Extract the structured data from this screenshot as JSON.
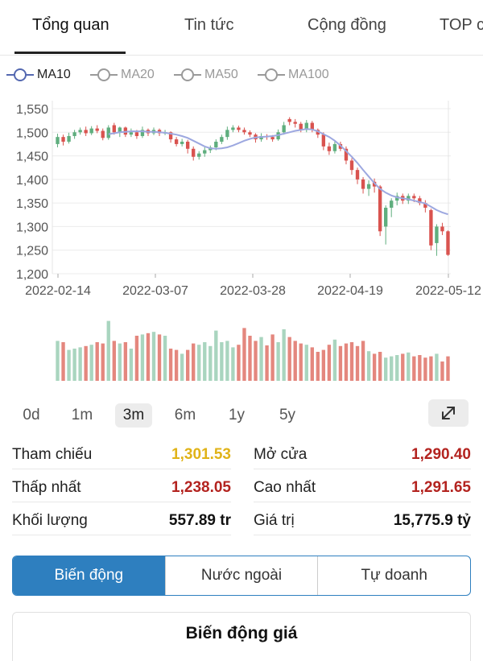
{
  "tabs": [
    {
      "label": "Tổng quan",
      "active": true
    },
    {
      "label": "Tin tức",
      "active": false
    },
    {
      "label": "Cộng đồng",
      "active": false
    },
    {
      "label": "TOP c",
      "active": false
    }
  ],
  "ma_legend": [
    {
      "label": "MA10",
      "color": "#5468b0",
      "active": true
    },
    {
      "label": "MA20",
      "color": "#9a9a9a",
      "active": false
    },
    {
      "label": "MA50",
      "color": "#9a9a9a",
      "active": false
    },
    {
      "label": "MA100",
      "color": "#9a9a9a",
      "active": false
    }
  ],
  "chart_data": {
    "type": "candlestick",
    "y_ticks": [
      "1,550",
      "1,500",
      "1,450",
      "1,400",
      "1,350",
      "1,300",
      "1,250",
      "1,200"
    ],
    "ylim": [
      1200,
      1550
    ],
    "x_ticks": [
      "2022-02-14",
      "2022-03-07",
      "2022-03-28",
      "2022-04-19",
      "2022-05-12"
    ],
    "colors": {
      "up": "#5fae7e",
      "down": "#d9534f",
      "ma": "#9da8e0",
      "up_vol": "#a9d5bf",
      "down_vol": "#e4877e"
    },
    "candles": [
      [
        1475,
        1490,
        1497,
        1468
      ],
      [
        1490,
        1480,
        1495,
        1472
      ],
      [
        1480,
        1492,
        1499,
        1476
      ],
      [
        1492,
        1500,
        1505,
        1486
      ],
      [
        1500,
        1505,
        1510,
        1495
      ],
      [
        1505,
        1498,
        1512,
        1492
      ],
      [
        1498,
        1508,
        1513,
        1494
      ],
      [
        1508,
        1503,
        1515,
        1498
      ],
      [
        1503,
        1488,
        1508,
        1483
      ],
      [
        1488,
        1510,
        1515,
        1484
      ],
      [
        1515,
        1500,
        1520,
        1495
      ],
      [
        1500,
        1510,
        1512,
        1490
      ],
      [
        1510,
        1495,
        1512,
        1490
      ],
      [
        1495,
        1500,
        1508,
        1490
      ],
      [
        1500,
        1492,
        1505,
        1486
      ],
      [
        1492,
        1505,
        1512,
        1488
      ],
      [
        1505,
        1498,
        1508,
        1492
      ],
      [
        1498,
        1505,
        1510,
        1494
      ],
      [
        1505,
        1498,
        1508,
        1492
      ],
      [
        1498,
        1500,
        1505,
        1494
      ],
      [
        1500,
        1485,
        1502,
        1478
      ],
      [
        1485,
        1475,
        1490,
        1470
      ],
      [
        1475,
        1480,
        1486,
        1470
      ],
      [
        1480,
        1465,
        1484,
        1455
      ],
      [
        1465,
        1448,
        1470,
        1440
      ],
      [
        1448,
        1455,
        1460,
        1442
      ],
      [
        1455,
        1462,
        1468,
        1448
      ],
      [
        1462,
        1468,
        1472,
        1456
      ],
      [
        1468,
        1480,
        1485,
        1462
      ],
      [
        1480,
        1490,
        1495,
        1475
      ],
      [
        1490,
        1505,
        1512,
        1484
      ],
      [
        1505,
        1510,
        1515,
        1500
      ],
      [
        1510,
        1505,
        1514,
        1500
      ],
      [
        1505,
        1500,
        1510,
        1495
      ],
      [
        1500,
        1495,
        1504,
        1490
      ],
      [
        1495,
        1485,
        1498,
        1478
      ],
      [
        1485,
        1492,
        1498,
        1480
      ],
      [
        1492,
        1490,
        1496,
        1484
      ],
      [
        1490,
        1485,
        1494,
        1480
      ],
      [
        1485,
        1500,
        1506,
        1482
      ],
      [
        1500,
        1515,
        1522,
        1495
      ],
      [
        1528,
        1522,
        1532,
        1515
      ],
      [
        1522,
        1518,
        1528,
        1510
      ],
      [
        1518,
        1505,
        1522,
        1500
      ],
      [
        1505,
        1520,
        1526,
        1500
      ],
      [
        1520,
        1505,
        1524,
        1500
      ],
      [
        1505,
        1495,
        1508,
        1488
      ],
      [
        1495,
        1470,
        1500,
        1462
      ],
      [
        1470,
        1460,
        1478,
        1452
      ],
      [
        1460,
        1475,
        1480,
        1455
      ],
      [
        1475,
        1465,
        1480,
        1460
      ],
      [
        1465,
        1440,
        1470,
        1432
      ],
      [
        1440,
        1420,
        1445,
        1410
      ],
      [
        1420,
        1400,
        1425,
        1390
      ],
      [
        1400,
        1380,
        1405,
        1370
      ],
      [
        1380,
        1390,
        1398,
        1365
      ],
      [
        1395,
        1385,
        1402,
        1372
      ],
      [
        1385,
        1290,
        1388,
        1280
      ],
      [
        1300,
        1340,
        1345,
        1262
      ],
      [
        1340,
        1355,
        1360,
        1320
      ],
      [
        1355,
        1365,
        1372,
        1345
      ],
      [
        1365,
        1355,
        1370,
        1348
      ],
      [
        1355,
        1365,
        1370,
        1348
      ],
      [
        1365,
        1360,
        1370,
        1352
      ],
      [
        1360,
        1350,
        1365,
        1345
      ],
      [
        1350,
        1340,
        1356,
        1330
      ],
      [
        1335,
        1260,
        1338,
        1250
      ],
      [
        1265,
        1300,
        1305,
        1238
      ],
      [
        1300,
        1290,
        1308,
        1282
      ],
      [
        1290,
        1240,
        1292,
        1238
      ]
    ],
    "volumes": [
      0.62,
      0.6,
      0.48,
      0.5,
      0.52,
      0.54,
      0.56,
      0.6,
      0.58,
      0.93,
      0.62,
      0.58,
      0.6,
      0.5,
      0.7,
      0.72,
      0.74,
      0.76,
      0.72,
      0.7,
      0.5,
      0.48,
      0.42,
      0.48,
      0.58,
      0.56,
      0.6,
      0.54,
      0.78,
      0.6,
      0.62,
      0.52,
      0.56,
      0.82,
      0.7,
      0.62,
      0.68,
      0.55,
      0.72,
      0.6,
      0.8,
      0.68,
      0.62,
      0.58,
      0.56,
      0.52,
      0.45,
      0.48,
      0.56,
      0.64,
      0.54,
      0.58,
      0.6,
      0.54,
      0.62,
      0.46,
      0.42,
      0.45,
      0.36,
      0.38,
      0.4,
      0.42,
      0.44,
      0.38,
      0.4,
      0.36,
      0.38,
      0.42,
      0.3,
      0.38
    ],
    "ma10": [
      null,
      null,
      null,
      null,
      null,
      null,
      null,
      null,
      null,
      1496,
      1498,
      1500,
      1501,
      1502,
      1502,
      1502,
      1501,
      1501,
      1500,
      1499,
      1497,
      1495,
      1492,
      1488,
      1482,
      1476,
      1470,
      1466,
      1465,
      1466,
      1468,
      1472,
      1477,
      1482,
      1486,
      1489,
      1490,
      1491,
      1492,
      1494,
      1497,
      1500,
      1503,
      1505,
      1507,
      1506,
      1502,
      1496,
      1490,
      1482,
      1472,
      1460,
      1448,
      1435,
      1420,
      1406,
      1392,
      1380,
      1372,
      1366,
      1362,
      1360,
      1358,
      1355,
      1352,
      1349,
      1342,
      1335,
      1330,
      1326
    ]
  },
  "periods": [
    {
      "label": "0d",
      "active": false
    },
    {
      "label": "1m",
      "active": false
    },
    {
      "label": "3m",
      "active": true
    },
    {
      "label": "6m",
      "active": false
    },
    {
      "label": "1y",
      "active": false
    },
    {
      "label": "5y",
      "active": false
    }
  ],
  "stats": {
    "tham_chieu": {
      "label": "Tham chiếu",
      "value": "1,301.53",
      "color": "#e0b318"
    },
    "mo_cua": {
      "label": "Mở cửa",
      "value": "1,290.40",
      "color": "#b3231f"
    },
    "thap_nhat": {
      "label": "Thấp nhất",
      "value": "1,238.05",
      "color": "#b3231f"
    },
    "cao_nhat": {
      "label": "Cao nhất",
      "value": "1,291.65",
      "color": "#b3231f"
    },
    "khoi_luong": {
      "label": "Khối lượng",
      "value": "557.89 tr",
      "color": "#111111"
    },
    "gia_tri": {
      "label": "Giá trị",
      "value": "15,775.9 tỷ",
      "color": "#111111"
    }
  },
  "segments": [
    {
      "label": "Biến động",
      "active": true
    },
    {
      "label": "Nước ngoài",
      "active": false
    },
    {
      "label": "Tự doanh",
      "active": false
    }
  ],
  "section_title": "Biến động giá"
}
